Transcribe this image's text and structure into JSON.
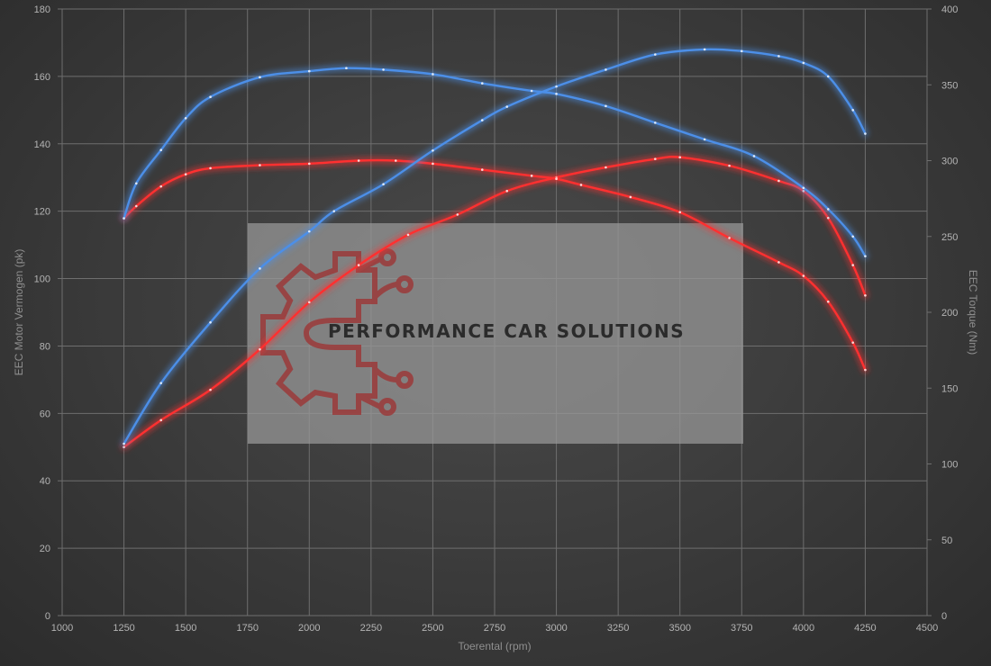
{
  "watermark": {
    "brand_text": "PERFORMANCE CAR SOLUTIONS",
    "logo_icon": "gear-circuit-logo-icon",
    "panel_color": "#9a9a9a",
    "logo_color": "#9b3a3a"
  },
  "chart_data": {
    "type": "line",
    "xlabel": "Toerental (rpm)",
    "ylabel_left": "EEC Motor Vermogen (pk)",
    "ylabel_right": "EEC Torque (Nm)",
    "xlim": [
      1000,
      4500
    ],
    "x_ticks": [
      1000,
      1250,
      1500,
      1750,
      2000,
      2250,
      2500,
      2750,
      3000,
      3250,
      3500,
      3750,
      4000,
      4250,
      4500
    ],
    "ylim_left": [
      0,
      180
    ],
    "y_ticks_left": [
      0,
      20,
      40,
      60,
      80,
      100,
      120,
      140,
      160,
      180
    ],
    "ylim_right": [
      0,
      400
    ],
    "y_ticks_right": [
      0,
      50,
      100,
      150,
      200,
      250,
      300,
      350,
      400
    ],
    "grid": true,
    "legend": "none",
    "series": [
      {
        "color": "#ff3030",
        "axis": "left",
        "points": [
          [
            1250,
            50
          ],
          [
            1400,
            58
          ],
          [
            1600,
            67
          ],
          [
            1800,
            79
          ],
          [
            2000,
            93
          ],
          [
            2200,
            104
          ],
          [
            2400,
            113
          ],
          [
            2600,
            119
          ],
          [
            2800,
            126
          ],
          [
            3000,
            130
          ],
          [
            3200,
            133
          ],
          [
            3400,
            135.5
          ],
          [
            3500,
            136
          ],
          [
            3700,
            133.5
          ],
          [
            3900,
            129
          ],
          [
            4000,
            126
          ],
          [
            4100,
            118
          ],
          [
            4200,
            104
          ],
          [
            4250,
            95
          ]
        ]
      },
      {
        "color": "#ff3030",
        "axis": "right",
        "points": [
          [
            1250,
            262
          ],
          [
            1300,
            270
          ],
          [
            1400,
            283
          ],
          [
            1500,
            291
          ],
          [
            1600,
            295
          ],
          [
            1800,
            297
          ],
          [
            2000,
            298
          ],
          [
            2200,
            300
          ],
          [
            2350,
            300
          ],
          [
            2500,
            298
          ],
          [
            2700,
            294
          ],
          [
            2900,
            290
          ],
          [
            3000,
            288
          ],
          [
            3100,
            284
          ],
          [
            3300,
            276
          ],
          [
            3500,
            266
          ],
          [
            3700,
            249
          ],
          [
            3900,
            233
          ],
          [
            4000,
            224
          ],
          [
            4100,
            207
          ],
          [
            4200,
            180
          ],
          [
            4250,
            162
          ]
        ]
      },
      {
        "color": "#4c8fe8",
        "axis": "left",
        "points": [
          [
            1250,
            51
          ],
          [
            1400,
            69
          ],
          [
            1600,
            87
          ],
          [
            1800,
            103
          ],
          [
            2000,
            114
          ],
          [
            2100,
            120
          ],
          [
            2300,
            128
          ],
          [
            2500,
            138
          ],
          [
            2700,
            147
          ],
          [
            2800,
            151
          ],
          [
            3000,
            157
          ],
          [
            3200,
            162
          ],
          [
            3400,
            166.5
          ],
          [
            3600,
            168
          ],
          [
            3750,
            167.5
          ],
          [
            3900,
            166
          ],
          [
            4000,
            164
          ],
          [
            4100,
            160
          ],
          [
            4200,
            150
          ],
          [
            4250,
            143
          ]
        ]
      },
      {
        "color": "#4c8fe8",
        "axis": "right",
        "points": [
          [
            1250,
            262
          ],
          [
            1300,
            285
          ],
          [
            1400,
            307
          ],
          [
            1500,
            328
          ],
          [
            1600,
            342
          ],
          [
            1800,
            355
          ],
          [
            2000,
            359
          ],
          [
            2150,
            361
          ],
          [
            2300,
            360
          ],
          [
            2500,
            357
          ],
          [
            2700,
            351
          ],
          [
            2900,
            346
          ],
          [
            3000,
            344
          ],
          [
            3200,
            336
          ],
          [
            3400,
            325
          ],
          [
            3600,
            314
          ],
          [
            3800,
            303
          ],
          [
            4000,
            282
          ],
          [
            4100,
            268
          ],
          [
            4200,
            250
          ],
          [
            4250,
            237
          ]
        ]
      }
    ]
  }
}
